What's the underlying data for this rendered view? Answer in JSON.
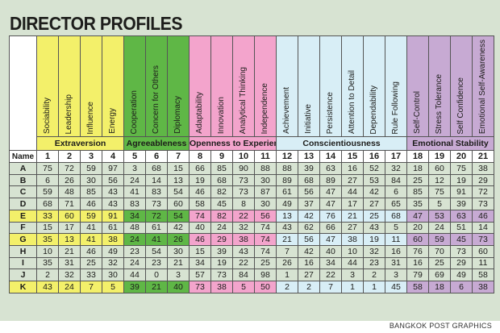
{
  "title": "DIRECTOR PROFILES",
  "credit": "BANGKOK POST GRAPHICS",
  "chart_data": {
    "type": "table",
    "title": "DIRECTOR PROFILES",
    "name_header": "Name",
    "groups": [
      {
        "key": "ext",
        "label": "Extraversion",
        "traits": [
          1,
          2,
          3,
          4
        ]
      },
      {
        "key": "agr",
        "label": "Agreeableness",
        "traits": [
          5,
          6,
          7
        ]
      },
      {
        "key": "ope",
        "label": "Openness to Experience",
        "traits": [
          8,
          9,
          10,
          11
        ]
      },
      {
        "key": "con",
        "label": "Conscientiousness",
        "traits": [
          12,
          13,
          14,
          15,
          16,
          17
        ]
      },
      {
        "key": "emo",
        "label": "Emotional Stability",
        "traits": [
          18,
          19,
          20,
          21
        ]
      }
    ],
    "traits": [
      {
        "num": "1",
        "label": "Sociability",
        "group": "ext"
      },
      {
        "num": "2",
        "label": "Leadership",
        "group": "ext"
      },
      {
        "num": "3",
        "label": "Influence",
        "group": "ext"
      },
      {
        "num": "4",
        "label": "Energy",
        "group": "ext"
      },
      {
        "num": "5",
        "label": "Cooperation",
        "group": "agr"
      },
      {
        "num": "6",
        "label": "Concern for Others",
        "group": "agr"
      },
      {
        "num": "7",
        "label": "Diplomacy",
        "group": "agr"
      },
      {
        "num": "8",
        "label": "Adaptability",
        "group": "ope"
      },
      {
        "num": "9",
        "label": "Innovation",
        "group": "ope"
      },
      {
        "num": "10",
        "label": "Analytical Thinking",
        "group": "ope"
      },
      {
        "num": "11",
        "label": "Independence",
        "group": "ope"
      },
      {
        "num": "12",
        "label": "Achievement",
        "group": "con"
      },
      {
        "num": "13",
        "label": "Initiative",
        "group": "con"
      },
      {
        "num": "14",
        "label": "Persistence",
        "group": "con"
      },
      {
        "num": "15",
        "label": "Attention to Detail",
        "group": "con"
      },
      {
        "num": "16",
        "label": "Dependability",
        "group": "con"
      },
      {
        "num": "17",
        "label": "Rule Following",
        "group": "con"
      },
      {
        "num": "18",
        "label": "Self-Control",
        "group": "emo"
      },
      {
        "num": "19",
        "label": "Stress Tolerance",
        "group": "emo"
      },
      {
        "num": "20",
        "label": "Self Confidence",
        "group": "emo"
      },
      {
        "num": "21",
        "label": "Emotional Self-Awareness",
        "group": "emo"
      }
    ],
    "rows": [
      {
        "name": "A",
        "highlight": false,
        "values": [
          75,
          72,
          59,
          97,
          3,
          68,
          15,
          66,
          85,
          90,
          88,
          88,
          39,
          63,
          16,
          52,
          32,
          18,
          60,
          75,
          38
        ]
      },
      {
        "name": "B",
        "highlight": false,
        "values": [
          6,
          26,
          30,
          56,
          24,
          14,
          13,
          19,
          68,
          73,
          30,
          89,
          68,
          89,
          27,
          53,
          84,
          25,
          12,
          19,
          29
        ]
      },
      {
        "name": "C",
        "highlight": false,
        "values": [
          59,
          48,
          85,
          43,
          41,
          83,
          54,
          46,
          82,
          73,
          87,
          61,
          56,
          47,
          44,
          42,
          6,
          85,
          75,
          91,
          72
        ]
      },
      {
        "name": "D",
        "highlight": false,
        "values": [
          68,
          71,
          46,
          43,
          83,
          73,
          60,
          58,
          45,
          8,
          30,
          49,
          37,
          47,
          17,
          27,
          65,
          35,
          5,
          39,
          73
        ]
      },
      {
        "name": "E",
        "highlight": true,
        "values": [
          33,
          60,
          59,
          91,
          34,
          72,
          54,
          74,
          82,
          22,
          56,
          13,
          42,
          76,
          21,
          25,
          68,
          47,
          53,
          63,
          46
        ]
      },
      {
        "name": "F",
        "highlight": false,
        "values": [
          15,
          17,
          41,
          61,
          48,
          61,
          42,
          40,
          24,
          32,
          74,
          43,
          62,
          66,
          27,
          43,
          5,
          20,
          24,
          51,
          14
        ]
      },
      {
        "name": "G",
        "highlight": true,
        "values": [
          35,
          13,
          41,
          38,
          24,
          41,
          26,
          46,
          29,
          38,
          74,
          21,
          56,
          47,
          38,
          19,
          11,
          60,
          59,
          45,
          73
        ]
      },
      {
        "name": "H",
        "highlight": false,
        "values": [
          10,
          21,
          46,
          49,
          23,
          54,
          30,
          15,
          39,
          43,
          74,
          7,
          42,
          40,
          10,
          32,
          16,
          76,
          70,
          73,
          60
        ]
      },
      {
        "name": "I",
        "highlight": false,
        "values": [
          35,
          31,
          25,
          32,
          24,
          23,
          21,
          34,
          19,
          22,
          25,
          26,
          16,
          34,
          44,
          23,
          31,
          16,
          25,
          29,
          11
        ]
      },
      {
        "name": "J",
        "highlight": false,
        "values": [
          2,
          32,
          33,
          30,
          44,
          0,
          3,
          57,
          73,
          84,
          98,
          1,
          27,
          22,
          3,
          2,
          3,
          79,
          69,
          49,
          58
        ]
      },
      {
        "name": "K",
        "highlight": true,
        "values": [
          43,
          24,
          7,
          5,
          39,
          21,
          40,
          73,
          38,
          5,
          50,
          2,
          2,
          7,
          1,
          1,
          45,
          58,
          18,
          6,
          38
        ]
      }
    ]
  }
}
